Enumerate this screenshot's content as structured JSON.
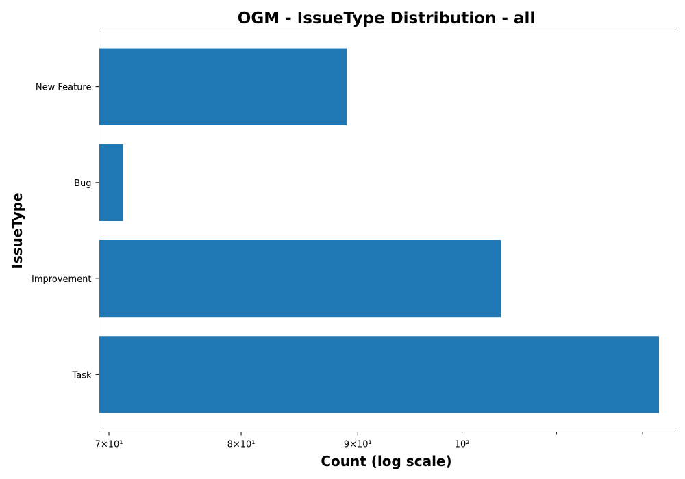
{
  "chart_data": {
    "type": "bar",
    "orientation": "horizontal",
    "title": "OGM - IssueType Distribution - all",
    "xlabel": "Count (log scale)",
    "ylabel": "IssueType",
    "categories": [
      "Task",
      "Improvement",
      "Bug",
      "New Feature"
    ],
    "values": [
      122,
      104,
      71,
      89
    ],
    "xscale": "log",
    "xlim": [
      69.3,
      124
    ],
    "xticks": [
      {
        "value": 70,
        "label": "7×10¹"
      },
      {
        "value": 80,
        "label": "8×10¹"
      },
      {
        "value": 90,
        "label": "9×10¹"
      },
      {
        "value": 100,
        "label": "10²"
      }
    ],
    "grid": false,
    "bar_color": "#1f77b4"
  }
}
